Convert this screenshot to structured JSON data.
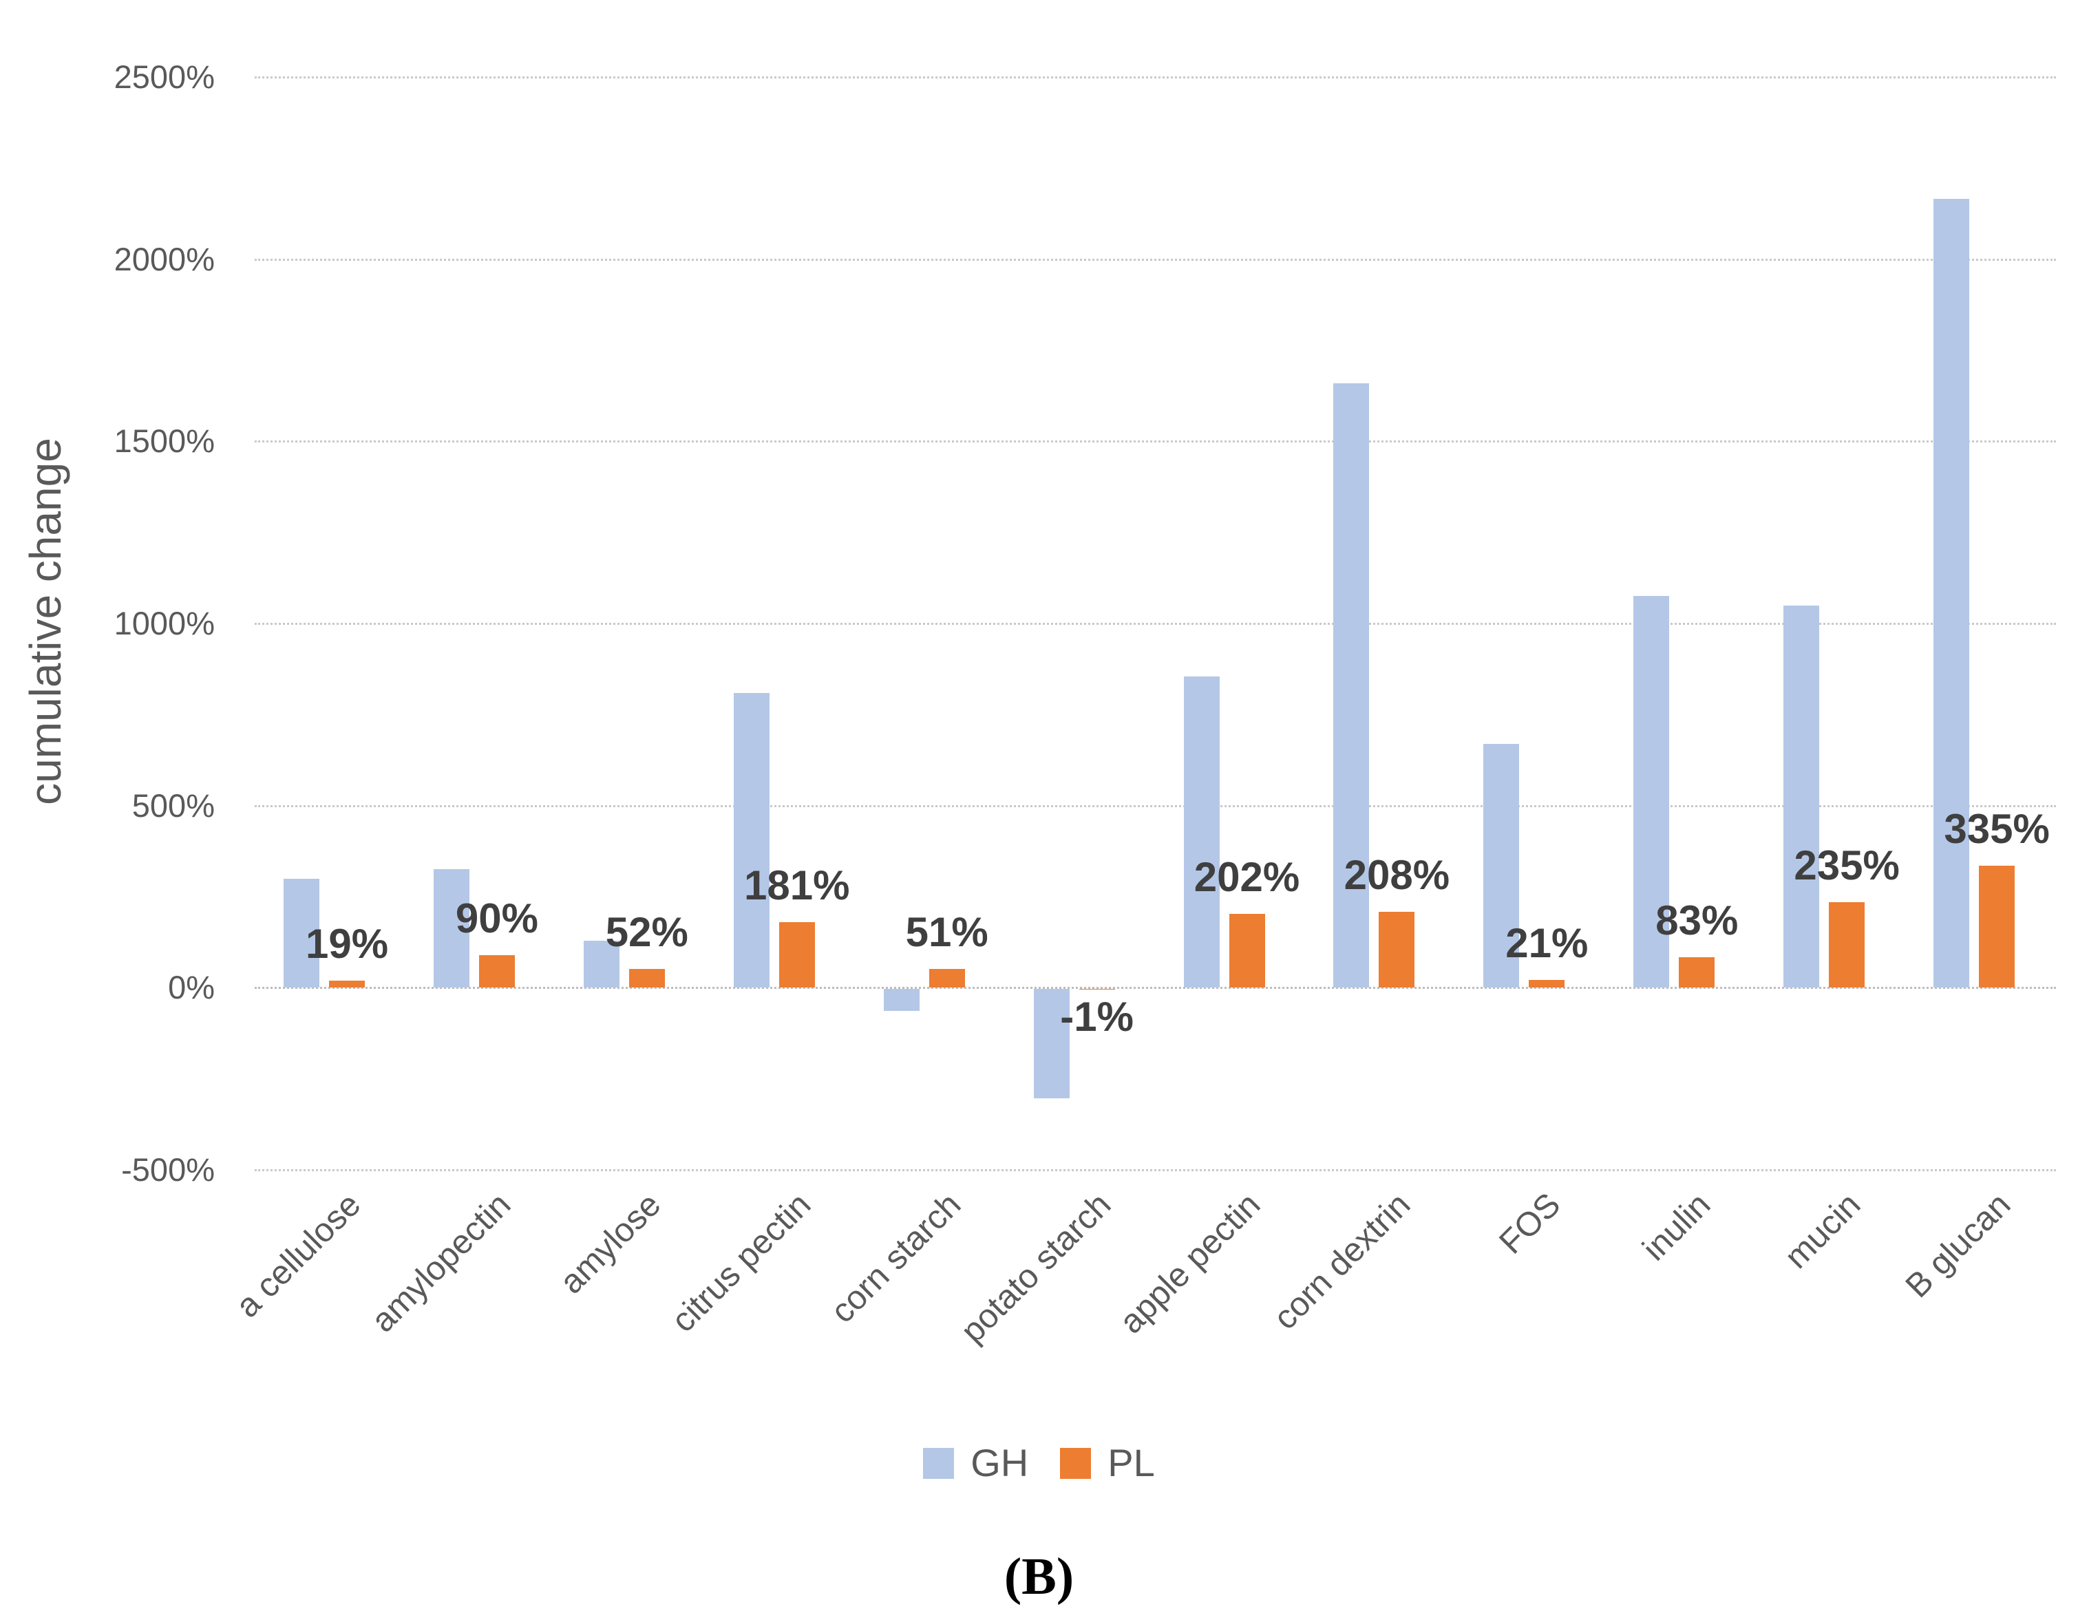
{
  "figure": {
    "caption": "(B)"
  },
  "chart_data": {
    "type": "bar",
    "title": "",
    "xlabel": "",
    "ylabel": "cumulative change",
    "categories": [
      "a cellulose",
      "amylopectin",
      "amylose",
      "citrus pectin",
      "corn starch",
      "potato starch",
      "apple pectin",
      "corn dextrin",
      "FOS",
      "inulin",
      "mucin",
      "B glucan"
    ],
    "series": [
      {
        "name": "GH",
        "color": "#b4c7e7",
        "values": [
          300,
          325,
          130,
          810,
          -60,
          -300,
          855,
          1660,
          670,
          1075,
          1050,
          2165
        ]
      },
      {
        "name": "PL",
        "color": "#ed7d31",
        "values": [
          19,
          90,
          52,
          181,
          51,
          -1,
          202,
          208,
          21,
          83,
          235,
          335
        ],
        "labels": [
          "19%",
          "90%",
          "52%",
          "181%",
          "51%",
          "-1%",
          "202%",
          "208%",
          "21%",
          "83%",
          "235%",
          "335%"
        ]
      }
    ],
    "y_axis": {
      "min": -500,
      "max": 2500,
      "step": 500,
      "tick_labels": [
        "2500%",
        "2000%",
        "1500%",
        "1000%",
        "500%",
        "0%",
        "-500%"
      ]
    },
    "grid": true,
    "legend": {
      "position": "bottom",
      "entries": [
        {
          "label": "GH",
          "color": "#b4c7e7"
        },
        {
          "label": "PL",
          "color": "#ed7d31"
        }
      ]
    },
    "text_colors": {
      "axis": "#595959",
      "data_label": "#3f3f3f"
    }
  }
}
